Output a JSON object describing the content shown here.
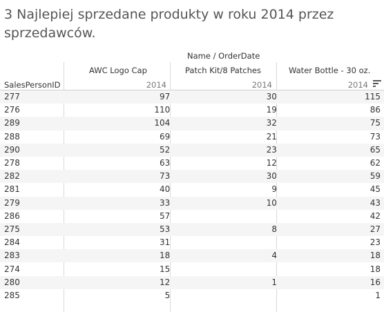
{
  "title": "3 Najlepiej sprzedane produkty w roku 2014 przez sprzedawców.",
  "chart_data": {
    "type": "table",
    "title": "3 Najlepiej sprzedane produkty w roku 2014 przez sprzedawców.",
    "column_header": "Name / OrderDate",
    "row_header": "SalesPersonID",
    "columns": [
      {
        "name": "AWC Logo Cap",
        "year": "2014"
      },
      {
        "name": "Patch Kit/8 Patches",
        "year": "2014"
      },
      {
        "name": "Water Bottle - 30 oz.",
        "year": "2014"
      }
    ],
    "rows": [
      {
        "id": "277",
        "values": [
          "97",
          "30",
          "115"
        ]
      },
      {
        "id": "276",
        "values": [
          "110",
          "19",
          "86"
        ]
      },
      {
        "id": "289",
        "values": [
          "104",
          "32",
          "75"
        ]
      },
      {
        "id": "288",
        "values": [
          "69",
          "21",
          "73"
        ]
      },
      {
        "id": "290",
        "values": [
          "52",
          "23",
          "65"
        ]
      },
      {
        "id": "278",
        "values": [
          "63",
          "12",
          "62"
        ]
      },
      {
        "id": "282",
        "values": [
          "73",
          "30",
          "59"
        ]
      },
      {
        "id": "281",
        "values": [
          "40",
          "9",
          "45"
        ]
      },
      {
        "id": "279",
        "values": [
          "33",
          "10",
          "43"
        ]
      },
      {
        "id": "286",
        "values": [
          "57",
          "",
          "42"
        ]
      },
      {
        "id": "275",
        "values": [
          "53",
          "8",
          "27"
        ]
      },
      {
        "id": "284",
        "values": [
          "31",
          "",
          "23"
        ]
      },
      {
        "id": "283",
        "values": [
          "18",
          "4",
          "18"
        ]
      },
      {
        "id": "274",
        "values": [
          "15",
          "",
          "18"
        ]
      },
      {
        "id": "280",
        "values": [
          "12",
          "1",
          "16"
        ]
      },
      {
        "id": "285",
        "values": [
          "5",
          "",
          "1"
        ]
      }
    ],
    "sort": {
      "column": "Water Bottle - 30 oz.",
      "direction": "descending",
      "icon": "sort-descending-icon"
    }
  }
}
